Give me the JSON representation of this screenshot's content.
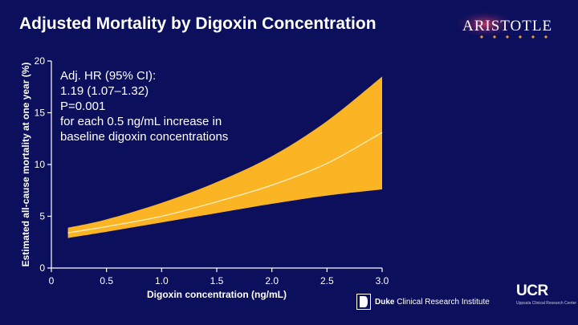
{
  "header": {
    "title": "Adjusted Mortality by Digoxin Concentration",
    "logo_text": "ARISTOTLE"
  },
  "colors": {
    "background": "#0b0f5c",
    "band": "#fbb424",
    "line": "#fff0c8",
    "axis": "#ffffff"
  },
  "chart_data": {
    "type": "area",
    "title": "",
    "xlabel": "Digoxin concentration (ng/mL)",
    "ylabel": "Estimated all-cause mortality at one year (%)",
    "xlim": [
      0,
      3.0
    ],
    "ylim": [
      0,
      20
    ],
    "x_ticks": [
      "0",
      "0.5",
      "1.0",
      "1.5",
      "2.0",
      "2.5",
      "3.0"
    ],
    "y_ticks": [
      "0",
      "5",
      "10",
      "15",
      "20"
    ],
    "grid": false,
    "series": [
      {
        "x": [
          0.15,
          0.5,
          1.0,
          1.5,
          2.0,
          2.5,
          3.0
        ],
        "lower": [
          2.9,
          3.5,
          4.4,
          5.3,
          6.2,
          7.0,
          7.6
        ],
        "mid": [
          3.4,
          4.0,
          5.0,
          6.4,
          8.0,
          10.1,
          13.1
        ],
        "upper": [
          3.9,
          4.7,
          6.3,
          8.3,
          10.8,
          14.2,
          18.5
        ]
      }
    ],
    "annotation": [
      "Adj. HR (95% CI):",
      "1.19 (1.07–1.32)",
      "P=0.001",
      "for each 0.5 ng/mL increase in",
      "baseline digoxin concentrations"
    ]
  },
  "footer": {
    "duke_bold": "Duke",
    "duke_rest": " Clinical Research Institute",
    "ucr_text": "UCR",
    "ucr_sub": "Uppsala Clinical Research Center"
  }
}
